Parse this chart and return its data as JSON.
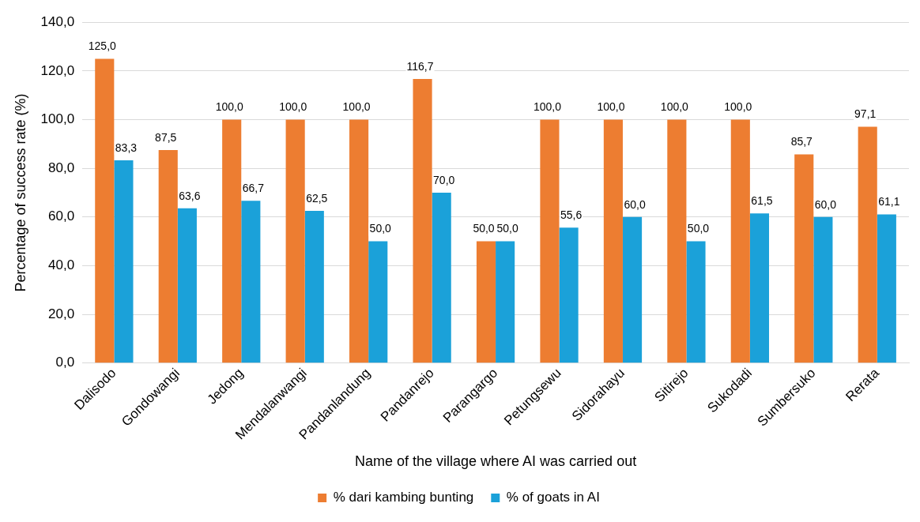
{
  "chart_data": {
    "type": "bar",
    "xlabel": "Name of the village where AI was carried out",
    "ylabel": "Percentage of success rate (%)",
    "categories": [
      "Dalisodo",
      "Gondowangi",
      "Jedong",
      "Mendalanwangi",
      "Pandanlandung",
      "Pandanrejo",
      "Parangargo",
      "Petungsewu",
      "Sidorahayu",
      "Sitirejo",
      "Sukodadi",
      "Sumbersuko",
      "Rerata"
    ],
    "series": [
      {
        "name": "% dari kambing bunting",
        "color": "#ed7d31",
        "values": [
          125.0,
          87.5,
          100.0,
          100.0,
          100.0,
          116.7,
          50.0,
          100.0,
          100.0,
          100.0,
          100.0,
          85.7,
          97.1
        ],
        "value_labels": [
          "125,0",
          "87,5",
          "100,0",
          "100,0",
          "100,0",
          "116,7",
          "50,0",
          "100,0",
          "100,0",
          "100,0",
          "100,0",
          "85,7",
          "97,1"
        ]
      },
      {
        "name": "% of goats in AI",
        "color": "#1ba1d9",
        "values": [
          83.3,
          63.6,
          66.7,
          62.5,
          50.0,
          70.0,
          50.0,
          55.6,
          60.0,
          50.0,
          61.5,
          60.0,
          61.1
        ],
        "value_labels": [
          "83,3",
          "63,6",
          "66,7",
          "62,5",
          "50,0",
          "70,0",
          "50,0",
          "55,6",
          "60,0",
          "50,0",
          "61,5",
          "60,0",
          "61,1"
        ]
      }
    ],
    "ylim": [
      0,
      140
    ],
    "yticks": [
      {
        "value": 0,
        "label": "0,0"
      },
      {
        "value": 20,
        "label": "20,0"
      },
      {
        "value": 40,
        "label": "40,0"
      },
      {
        "value": 60,
        "label": "60,0"
      },
      {
        "value": 80,
        "label": "80,0"
      },
      {
        "value": 100,
        "label": "100,0"
      },
      {
        "value": 120,
        "label": "120,0"
      },
      {
        "value": 140,
        "label": "140,0"
      }
    ],
    "grid": "y",
    "legend": "bottom"
  }
}
